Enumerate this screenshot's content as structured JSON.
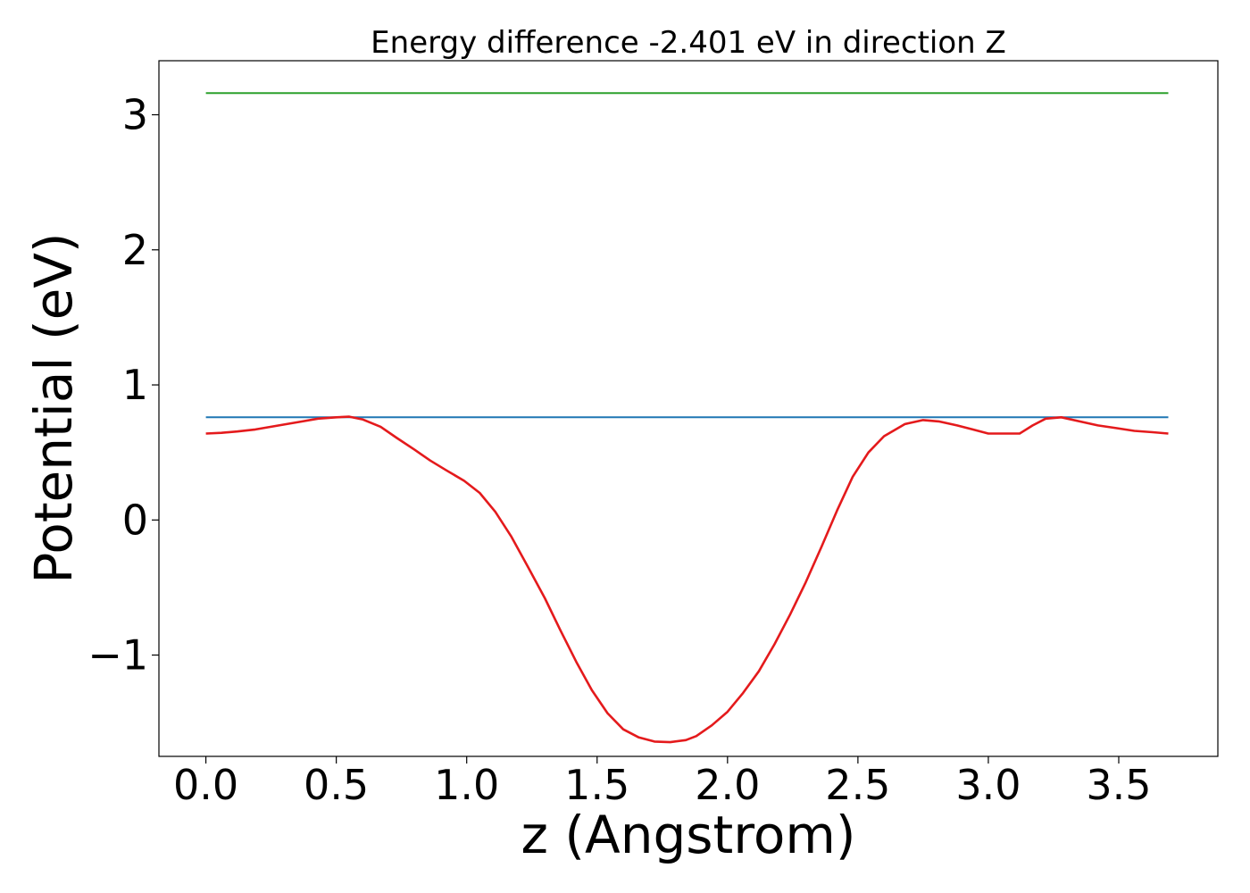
{
  "chart_data": {
    "type": "line",
    "title": "Energy difference -2.401 eV in direction Z",
    "xlabel": "z (Angstrom)",
    "ylabel": "Potential (eV)",
    "xlim": [
      -0.18,
      3.88
    ],
    "ylim": [
      -1.75,
      3.4
    ],
    "grid": false,
    "x_ticks": [
      {
        "value": 0.0,
        "label": "0.0"
      },
      {
        "value": 0.5,
        "label": "0.5"
      },
      {
        "value": 1.0,
        "label": "1.0"
      },
      {
        "value": 1.5,
        "label": "1.5"
      },
      {
        "value": 2.0,
        "label": "2.0"
      },
      {
        "value": 2.5,
        "label": "2.5"
      },
      {
        "value": 3.0,
        "label": "3.0"
      },
      {
        "value": 3.5,
        "label": "3.5"
      }
    ],
    "y_ticks": [
      {
        "value": -1,
        "label": "−1"
      },
      {
        "value": 0,
        "label": "0"
      },
      {
        "value": 1,
        "label": "1"
      },
      {
        "value": 2,
        "label": "2"
      },
      {
        "value": 3,
        "label": "3"
      }
    ],
    "series": [
      {
        "color": "#2ca02c",
        "x": [
          0.0,
          3.69
        ],
        "y": [
          3.16,
          3.16
        ]
      },
      {
        "color": "#1f77b4",
        "x": [
          0.0,
          3.69
        ],
        "y": [
          0.76,
          0.76
        ]
      },
      {
        "color": "#e41a1c",
        "x": [
          0.0,
          0.06,
          0.12,
          0.19,
          0.25,
          0.31,
          0.37,
          0.43,
          0.5,
          0.55,
          0.6,
          0.67,
          0.73,
          0.8,
          0.86,
          0.92,
          0.99,
          1.05,
          1.11,
          1.17,
          1.23,
          1.3,
          1.36,
          1.42,
          1.48,
          1.54,
          1.6,
          1.66,
          1.72,
          1.78,
          1.84,
          1.88,
          1.94,
          2.0,
          2.06,
          2.12,
          2.18,
          2.24,
          2.3,
          2.36,
          2.42,
          2.48,
          2.54,
          2.6,
          2.68,
          2.75,
          2.81,
          2.88,
          2.94,
          3.0,
          3.06,
          3.12,
          3.17,
          3.22,
          3.28,
          3.35,
          3.42,
          3.49,
          3.56,
          3.63,
          3.69
        ],
        "y": [
          0.64,
          0.645,
          0.655,
          0.67,
          0.69,
          0.71,
          0.73,
          0.75,
          0.76,
          0.765,
          0.745,
          0.69,
          0.61,
          0.52,
          0.44,
          0.37,
          0.29,
          0.2,
          0.06,
          -0.12,
          -0.33,
          -0.58,
          -0.82,
          -1.05,
          -1.26,
          -1.43,
          -1.55,
          -1.61,
          -1.64,
          -1.645,
          -1.63,
          -1.6,
          -1.52,
          -1.42,
          -1.28,
          -1.12,
          -0.92,
          -0.7,
          -0.46,
          -0.2,
          0.07,
          0.32,
          0.5,
          0.62,
          0.71,
          0.74,
          0.73,
          0.7,
          0.67,
          0.64,
          0.64,
          0.64,
          0.7,
          0.75,
          0.76,
          0.73,
          0.7,
          0.68,
          0.66,
          0.65,
          0.64
        ]
      }
    ]
  }
}
